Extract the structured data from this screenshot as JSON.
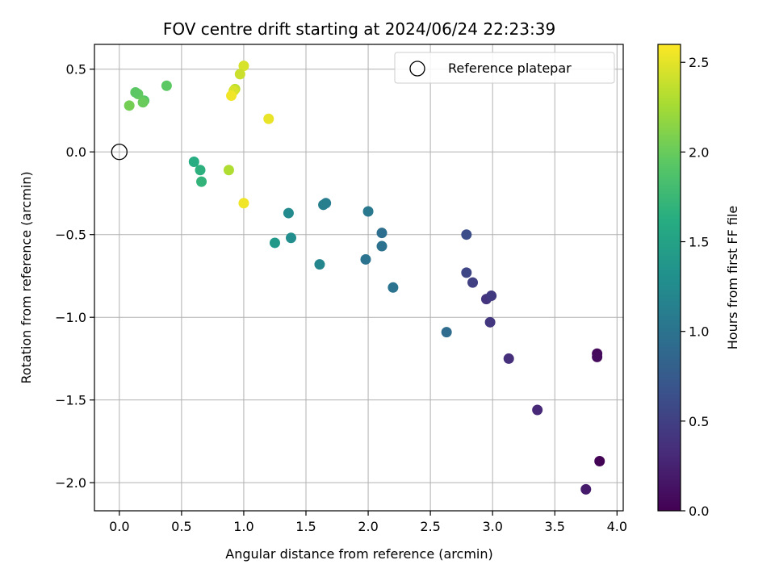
{
  "chart_data": {
    "type": "scatter",
    "title": "FOV centre drift starting at 2024/06/24 22:23:39",
    "xlabel": "Angular distance from reference (arcmin)",
    "ylabel": "Rotation from reference (arcmin)",
    "xlim": [
      -0.2,
      4.05
    ],
    "ylim": [
      -2.17,
      0.65
    ],
    "xticks": [
      0.0,
      0.5,
      1.0,
      1.5,
      2.0,
      2.5,
      3.0,
      3.5,
      4.0
    ],
    "xtick_labels": [
      "0.0",
      "0.5",
      "1.0",
      "1.5",
      "2.0",
      "2.5",
      "3.0",
      "3.5",
      "4.0"
    ],
    "yticks": [
      0.5,
      0.0,
      -0.5,
      -1.0,
      -1.5,
      -2.0
    ],
    "ytick_labels": [
      "0.5",
      "0.0",
      "−0.5",
      "−1.0",
      "−1.5",
      "−2.0"
    ],
    "grid": true,
    "legend": {
      "placement": "top-right",
      "entries": [
        "Reference platepar"
      ]
    },
    "reference_point": {
      "label": "Reference platepar",
      "x": 0.0,
      "y": 0.0
    },
    "colorbar": {
      "label": "Hours from first FF file",
      "colormap": "viridis",
      "range": [
        0.0,
        2.6
      ],
      "ticks": [
        0.0,
        0.5,
        1.0,
        1.5,
        2.0,
        2.5
      ],
      "tick_labels": [
        "0.0",
        "0.5",
        "1.0",
        "1.5",
        "2.0",
        "2.5"
      ]
    },
    "points": [
      {
        "x": 3.86,
        "y": -1.87,
        "hours": 0.02
      },
      {
        "x": 3.84,
        "y": -1.22,
        "hours": 0.06
      },
      {
        "x": 3.84,
        "y": -1.24,
        "hours": 0.08
      },
      {
        "x": 3.75,
        "y": -2.04,
        "hours": 0.2
      },
      {
        "x": 3.36,
        "y": -1.56,
        "hours": 0.3
      },
      {
        "x": 3.13,
        "y": -1.25,
        "hours": 0.35
      },
      {
        "x": 2.98,
        "y": -1.03,
        "hours": 0.42
      },
      {
        "x": 2.95,
        "y": -0.89,
        "hours": 0.4
      },
      {
        "x": 2.99,
        "y": -0.87,
        "hours": 0.45
      },
      {
        "x": 2.84,
        "y": -0.79,
        "hours": 0.5
      },
      {
        "x": 2.79,
        "y": -0.73,
        "hours": 0.55
      },
      {
        "x": 2.79,
        "y": -0.5,
        "hours": 0.62
      },
      {
        "x": 2.63,
        "y": -1.09,
        "hours": 0.92
      },
      {
        "x": 2.2,
        "y": -0.82,
        "hours": 1.0
      },
      {
        "x": 2.11,
        "y": -0.57,
        "hours": 0.98
      },
      {
        "x": 2.11,
        "y": -0.49,
        "hours": 0.94
      },
      {
        "x": 2.0,
        "y": -0.36,
        "hours": 1.05
      },
      {
        "x": 1.98,
        "y": -0.65,
        "hours": 1.0
      },
      {
        "x": 1.66,
        "y": -0.31,
        "hours": 1.1
      },
      {
        "x": 1.64,
        "y": -0.32,
        "hours": 1.12
      },
      {
        "x": 1.61,
        "y": -0.68,
        "hours": 1.2
      },
      {
        "x": 1.38,
        "y": -0.52,
        "hours": 1.28
      },
      {
        "x": 1.36,
        "y": -0.37,
        "hours": 1.25
      },
      {
        "x": 1.25,
        "y": -0.55,
        "hours": 1.4
      },
      {
        "x": 0.66,
        "y": -0.18,
        "hours": 1.7
      },
      {
        "x": 0.65,
        "y": -0.11,
        "hours": 1.66
      },
      {
        "x": 0.6,
        "y": -0.06,
        "hours": 1.62
      },
      {
        "x": 0.38,
        "y": 0.4,
        "hours": 1.95
      },
      {
        "x": 0.2,
        "y": 0.31,
        "hours": 1.92
      },
      {
        "x": 0.19,
        "y": 0.3,
        "hours": 2.0
      },
      {
        "x": 0.15,
        "y": 0.35,
        "hours": 1.97
      },
      {
        "x": 0.13,
        "y": 0.36,
        "hours": 1.94
      },
      {
        "x": 0.08,
        "y": 0.28,
        "hours": 2.05
      },
      {
        "x": 0.88,
        "y": -0.11,
        "hours": 2.3
      },
      {
        "x": 1.0,
        "y": -0.31,
        "hours": 2.55
      },
      {
        "x": 1.2,
        "y": 0.2,
        "hours": 2.52
      },
      {
        "x": 1.0,
        "y": 0.52,
        "hours": 2.45
      },
      {
        "x": 0.97,
        "y": 0.47,
        "hours": 2.4
      },
      {
        "x": 0.93,
        "y": 0.38,
        "hours": 2.35
      },
      {
        "x": 0.92,
        "y": 0.37,
        "hours": 2.45
      },
      {
        "x": 0.9,
        "y": 0.34,
        "hours": 2.55
      }
    ]
  }
}
